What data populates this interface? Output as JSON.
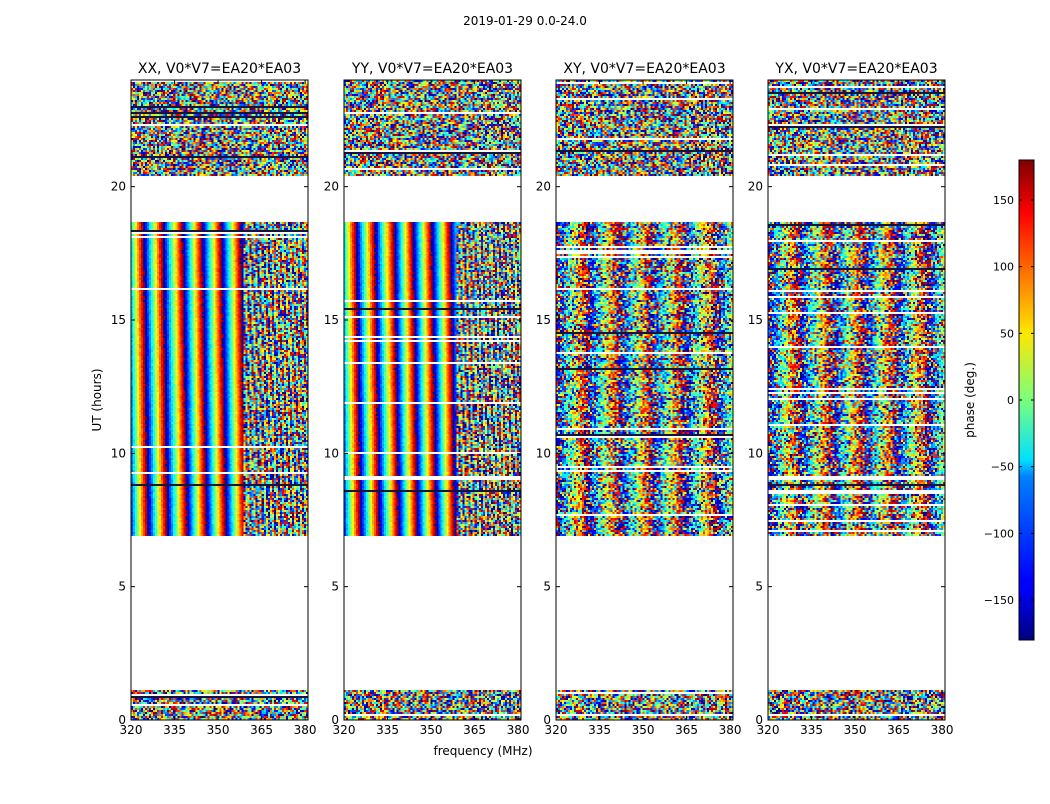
{
  "figure": {
    "suptitle": "2019-01-29 0.0-24.0",
    "xlabel": "frequency (MHz)",
    "ylabel": "UT (hours)"
  },
  "chart_data": {
    "type": "heatmap",
    "title": "2019-01-29 0.0-24.0",
    "xlabel": "frequency (MHz)",
    "ylabel": "UT (hours)",
    "xlim": [
      320,
      381
    ],
    "ylim": [
      0,
      24
    ],
    "xticks": [
      320,
      335,
      350,
      365,
      380
    ],
    "yticks": [
      0,
      5,
      10,
      15,
      20
    ],
    "panels": [
      {
        "title": "XX, V0*V7=EA20*EA03",
        "polarization": "XX",
        "fringe_period_mhz": 6.7,
        "fringe_coherent_until_mhz": 359
      },
      {
        "title": "YY, V0*V7=EA20*EA03",
        "polarization": "YY",
        "fringe_period_mhz": 6.5,
        "fringe_coherent_until_mhz": 359
      },
      {
        "title": "XY, V0*V7=EA20*EA03",
        "polarization": "XY",
        "fringe_period_mhz": 11,
        "fringe_coherent_until_mhz": 0
      },
      {
        "title": "YX, V0*V7=EA20*EA03",
        "polarization": "YX",
        "fringe_period_mhz": 11,
        "fringe_coherent_until_mhz": 0
      }
    ],
    "data_time_ranges_hours": [
      [
        0.0,
        1.1
      ],
      [
        6.9,
        18.7
      ],
      [
        20.4,
        24.0
      ]
    ],
    "flagged_gaps_hours": [
      [
        1.1,
        6.9
      ],
      [
        18.7,
        20.4
      ]
    ],
    "colorbar": {
      "label": "phase (deg.)",
      "range": [
        -180,
        180
      ],
      "ticks": [
        -150,
        -100,
        -50,
        0,
        50,
        100,
        150
      ],
      "tick_labels": [
        "−150",
        "−100",
        "−50",
        "0",
        "50",
        "100",
        "150"
      ],
      "colormap": "jet"
    }
  }
}
